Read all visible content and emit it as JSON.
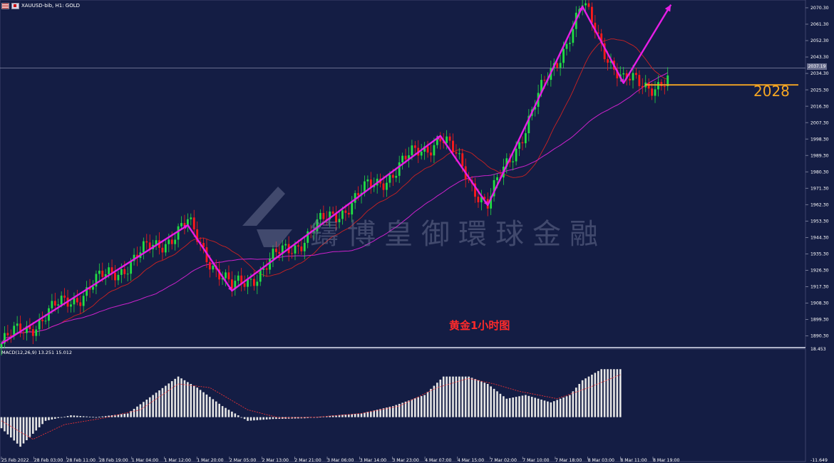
{
  "header": {
    "title": "XAUUSD-bib, H1:  GOLD"
  },
  "watermark": {
    "text": "鑄博皇御環球金融"
  },
  "caption": "黄金1小时图",
  "level_label": "2028",
  "current_price": "2037.19",
  "colors": {
    "background": "#141d44",
    "bull": "#22dd44",
    "bear": "#ff1a1a",
    "ma_fast": "#cc2222",
    "ma_slow": "#cc22cc",
    "trend_path": "#e61ee6",
    "level_line": "#f5a623",
    "macd_hist": "#e6e6e6",
    "macd_signal": "#ff3333",
    "axis_text": "#ffffff"
  },
  "chart_data": [
    {
      "type": "line",
      "symbol": "XAUUSD-bib",
      "timeframe": "H1",
      "y_ticks": [
        2070.3,
        2061.3,
        2052.3,
        2043.3,
        2034.3,
        2025.3,
        2016.3,
        2007.3,
        1998.3,
        1989.3,
        1980.3,
        1971.3,
        1962.3,
        1953.3,
        1944.3,
        1935.3,
        1926.3,
        1917.3,
        1908.3,
        1899.3,
        1890.3
      ],
      "ylim": [
        1884.6,
        2073.8
      ],
      "x_ticks": [
        "25 Feb 2022",
        "28 Feb 03:00",
        "28 Feb 11:00",
        "28 Feb 19:00",
        "1 Mar 04:00",
        "1 Mar 12:00",
        "1 Mar 20:00",
        "2 Mar 05:00",
        "2 Mar 13:00",
        "2 Mar 21:00",
        "3 Mar 06:00",
        "3 Mar 14:00",
        "3 Mar 23:00",
        "4 Mar 07:00",
        "4 Mar 15:00",
        "7 Mar 02:00",
        "7 Mar 10:00",
        "7 Mar 18:00",
        "8 Mar 03:00",
        "8 Mar 11:00",
        "8 Mar 19:00"
      ],
      "trend_path_points": [
        [
          0,
          1886
        ],
        [
          59,
          1951
        ],
        [
          73,
          1915
        ],
        [
          139,
          2000
        ],
        [
          154,
          1962
        ],
        [
          184,
          2071
        ],
        [
          197,
          2029
        ],
        [
          212,
          2072
        ]
      ],
      "horizontal_levels": [
        2028
      ],
      "current_price": 2037.19,
      "grid": false
    },
    {
      "type": "bar",
      "title": "MACD(12,26,9)",
      "values_text": "13.251 15.012",
      "y_ticks": [
        18.453,
        -11.649
      ],
      "ylim": [
        -11.649,
        18.453
      ],
      "histogram_keypoints": [
        [
          0,
          -3
        ],
        [
          6,
          -8
        ],
        [
          14,
          -1
        ],
        [
          22,
          0.5
        ],
        [
          30,
          0
        ],
        [
          40,
          1
        ],
        [
          48,
          6
        ],
        [
          56,
          11
        ],
        [
          62,
          8
        ],
        [
          70,
          3
        ],
        [
          78,
          -1
        ],
        [
          86,
          -0.5
        ],
        [
          96,
          -0.3
        ],
        [
          106,
          0.5
        ],
        [
          114,
          1
        ],
        [
          124,
          3
        ],
        [
          134,
          6
        ],
        [
          140,
          11
        ],
        [
          148,
          11
        ],
        [
          154,
          9
        ],
        [
          160,
          5
        ],
        [
          166,
          6
        ],
        [
          174,
          4
        ],
        [
          180,
          6
        ],
        [
          184,
          10
        ],
        [
          190,
          13
        ],
        [
          196,
          13
        ]
      ],
      "signal_keypoints": [
        [
          0,
          -1
        ],
        [
          10,
          -6
        ],
        [
          20,
          -2
        ],
        [
          32,
          -0.3
        ],
        [
          44,
          2
        ],
        [
          56,
          9
        ],
        [
          66,
          8
        ],
        [
          78,
          2
        ],
        [
          88,
          -0.2
        ],
        [
          100,
          0
        ],
        [
          114,
          1
        ],
        [
          126,
          3
        ],
        [
          138,
          8
        ],
        [
          148,
          10.5
        ],
        [
          156,
          9
        ],
        [
          164,
          7
        ],
        [
          176,
          5
        ],
        [
          186,
          8
        ],
        [
          196,
          11.5
        ]
      ]
    }
  ]
}
